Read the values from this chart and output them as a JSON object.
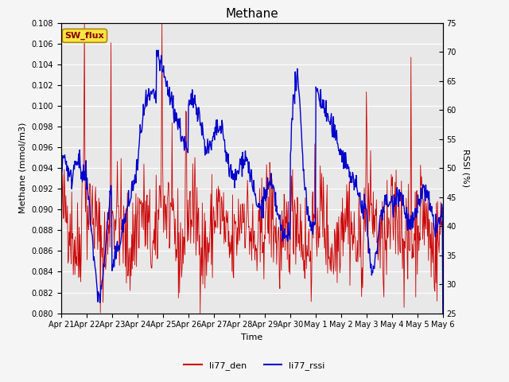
{
  "title": "Methane",
  "ylabel_left": "Methane (mmol/m3)",
  "ylabel_right": "RSSI (%)",
  "xlabel": "Time",
  "ylim_left": [
    0.08,
    0.108
  ],
  "ylim_right": [
    25,
    75
  ],
  "xlim": [
    0,
    360
  ],
  "tick_labels": [
    "Apr 21",
    "Apr 22",
    "Apr 23",
    "Apr 24",
    "Apr 25",
    "Apr 26",
    "Apr 27",
    "Apr 28",
    "Apr 29",
    "Apr 30",
    "May 1",
    "May 2",
    "May 3",
    "May 4",
    "May 5",
    "May 6"
  ],
  "tick_positions": [
    0,
    24,
    48,
    72,
    96,
    120,
    144,
    168,
    192,
    216,
    240,
    264,
    288,
    312,
    336,
    360
  ],
  "annotation_text": "SW_flux",
  "annotation_bg": "#f5e642",
  "annotation_border": "#b8860b",
  "annotation_text_color": "#8b0000",
  "line_red_color": "#cc0000",
  "line_blue_color": "#0000cc",
  "axes_bg_color": "#e8e8e8",
  "fig_bg_color": "#f5f5f5",
  "legend_red": "li77_den",
  "legend_blue": "li77_rssi",
  "title_fontsize": 11,
  "axis_label_fontsize": 8,
  "tick_fontsize": 7,
  "legend_fontsize": 8,
  "annot_fontsize": 8,
  "left_yticks": [
    0.08,
    0.082,
    0.084,
    0.086,
    0.088,
    0.09,
    0.092,
    0.094,
    0.096,
    0.098,
    0.1,
    0.102,
    0.104,
    0.106,
    0.108
  ],
  "right_yticks": [
    25,
    30,
    35,
    40,
    45,
    50,
    55,
    60,
    65,
    70,
    75
  ]
}
